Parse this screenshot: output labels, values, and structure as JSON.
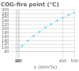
{
  "chart_data": {
    "type": "line",
    "title": "COG-fire point (°C)",
    "xlabel": "v (mm²/s)",
    "x": [
      0,
      50,
      100,
      150,
      200,
      250,
      300,
      350,
      400,
      450,
      500
    ],
    "values": [
      80,
      110,
      138,
      163,
      185,
      207,
      225,
      243,
      258,
      272,
      285
    ],
    "color": "#7fd8f0",
    "line_style": "dotted",
    "marker": "point",
    "xlim": [
      0,
      500
    ],
    "ylim": [
      80,
      300
    ],
    "xticks": [
      0,
      10,
      20,
      30,
      400,
      500
    ],
    "yticks": [
      80,
      100,
      120,
      140,
      160,
      180,
      200,
      220,
      240,
      260,
      280,
      300
    ],
    "grid": true
  }
}
